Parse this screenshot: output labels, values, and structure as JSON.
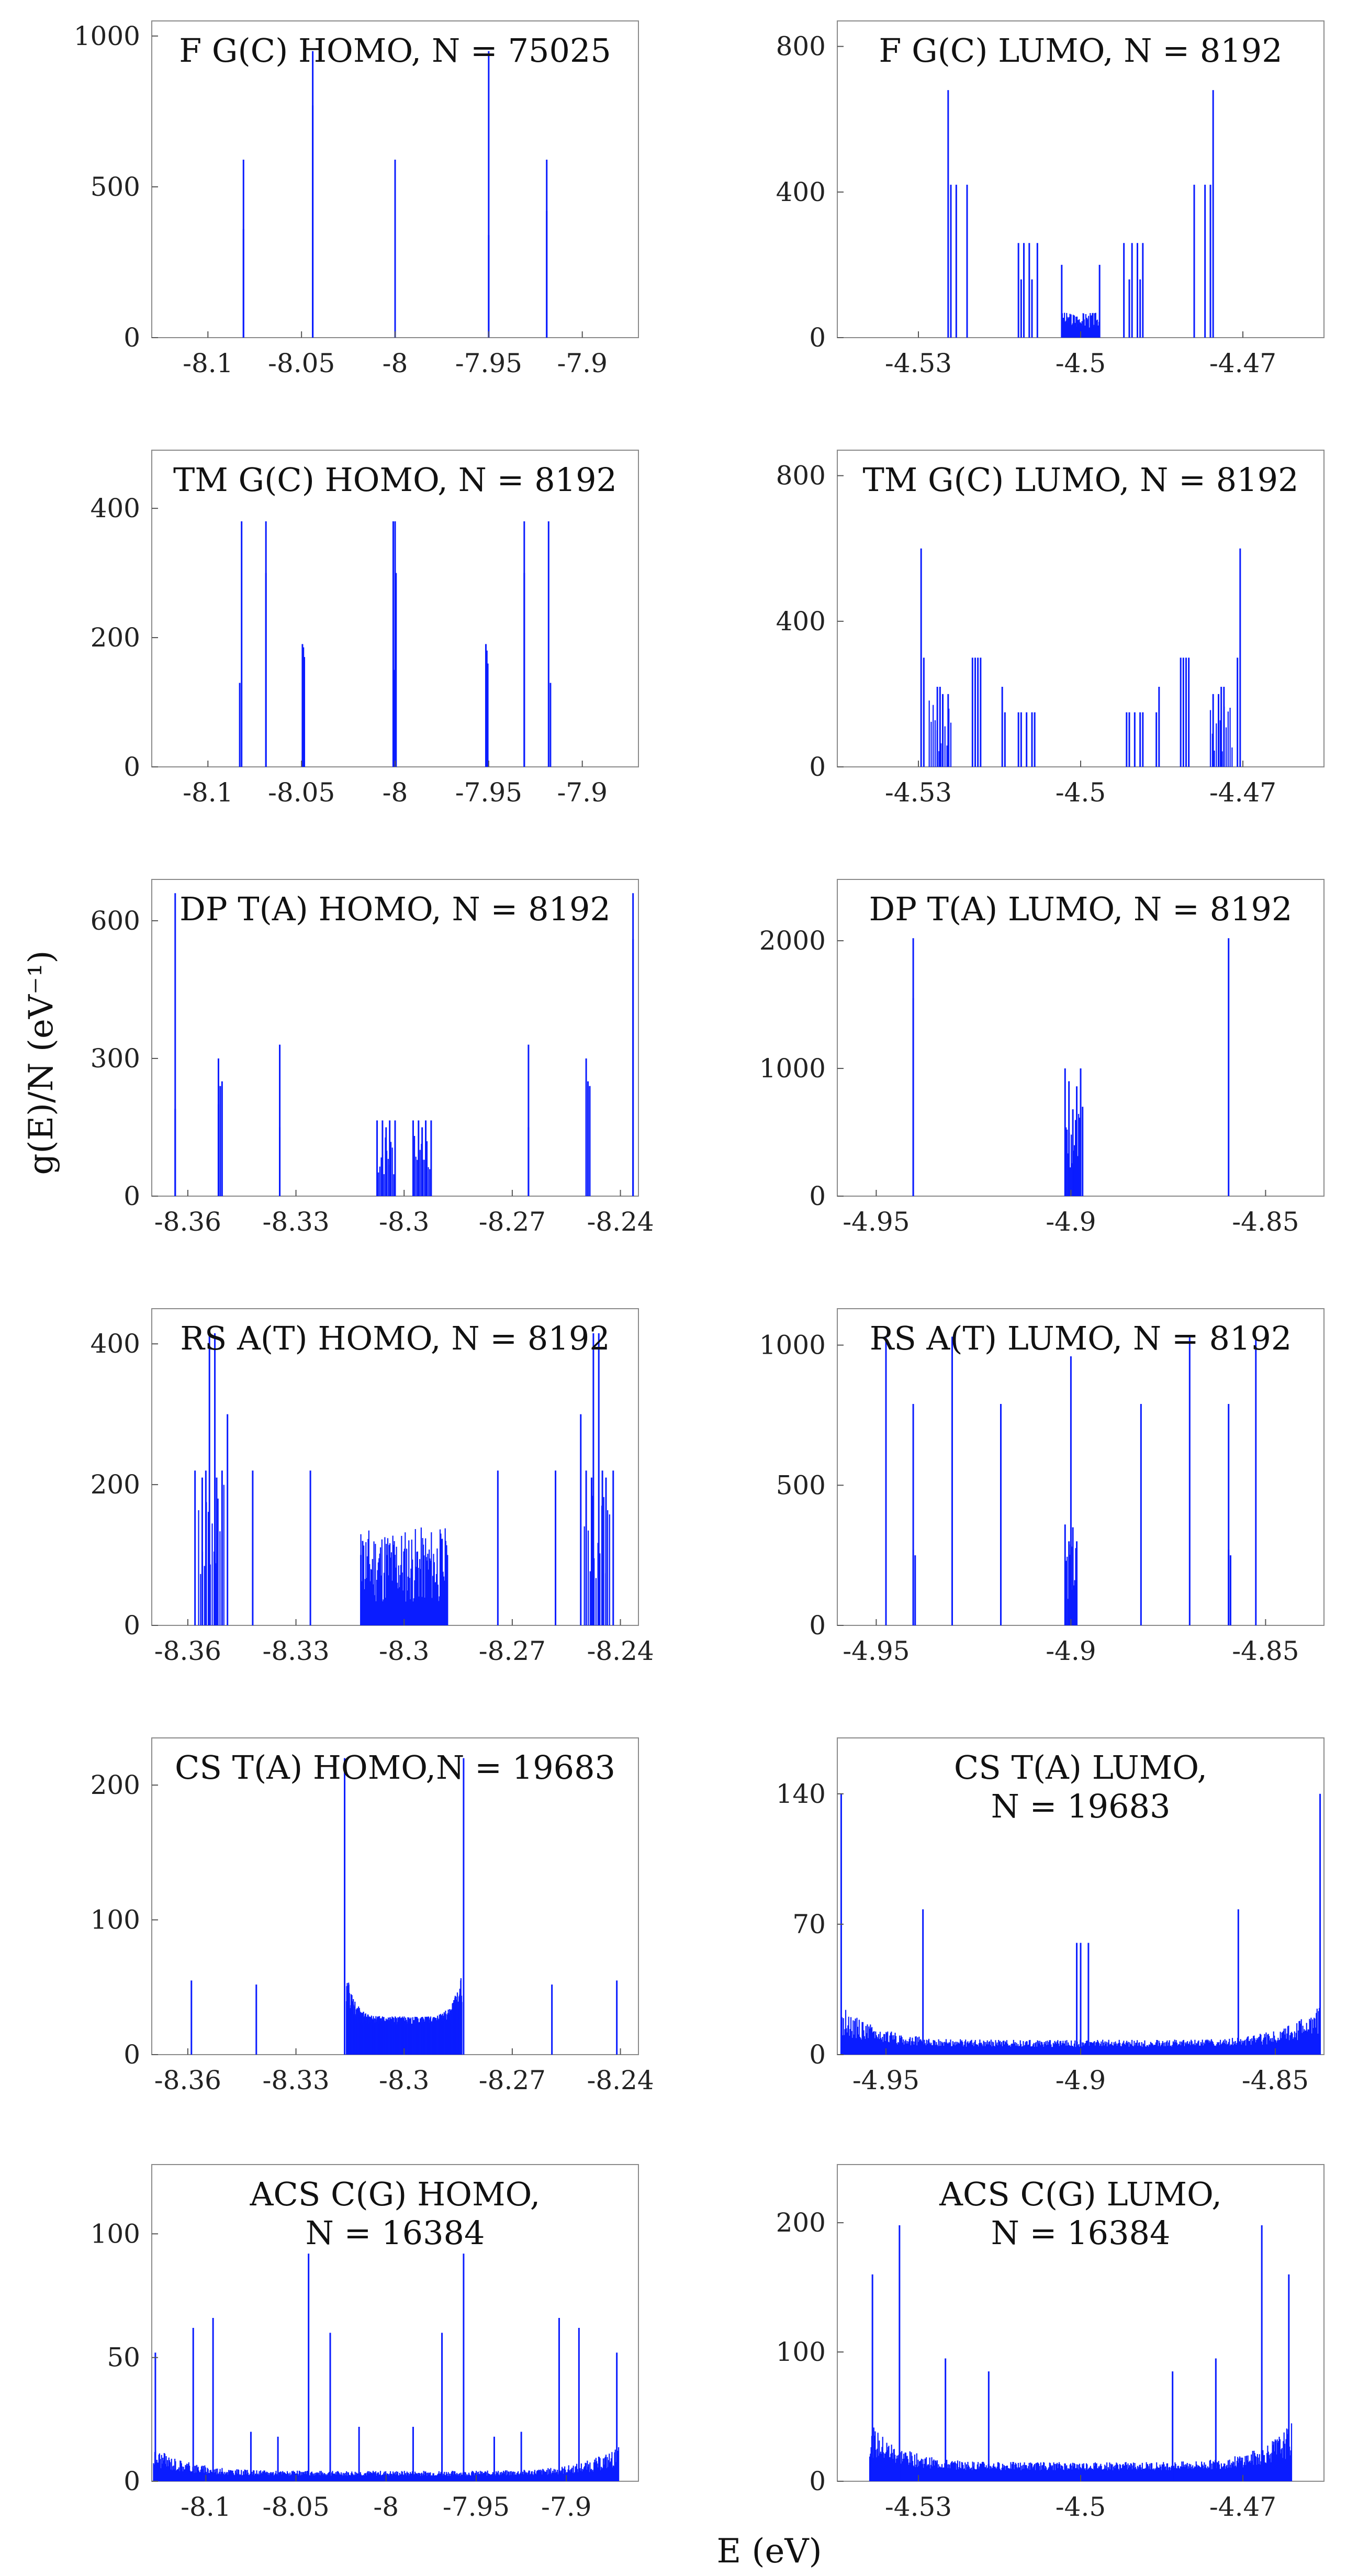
{
  "figure": {
    "ylabel": "g(E)/N (eV⁻¹)",
    "xlabel": "E (eV)"
  },
  "chart_data": [
    {
      "type": "bar",
      "title_lines": [
        "F G(C) HOMO, N = 75025"
      ],
      "xlim": [
        -8.13,
        -7.87
      ],
      "ylim": [
        0,
        1050
      ],
      "xticks": [
        -8.1,
        -8.05,
        -8.0,
        -7.95,
        -7.9
      ],
      "xtick_labels": [
        "-8.1",
        "-8.05",
        "-8",
        "-7.95",
        "-7.9"
      ],
      "yticks": [
        0,
        500,
        1000
      ],
      "ytick_labels": [
        "0",
        "500",
        "1000"
      ],
      "peaks": [
        [
          -8.081,
          590
        ],
        [
          -8.081,
          360
        ],
        [
          -8.044,
          950
        ],
        [
          -8.044,
          770
        ],
        [
          -8.0,
          590
        ],
        [
          -8.0,
          360
        ],
        [
          -7.95,
          950
        ],
        [
          -7.95,
          340
        ],
        [
          -7.919,
          590
        ],
        [
          -7.919,
          420
        ]
      ],
      "clusters": []
    },
    {
      "type": "bar",
      "title_lines": [
        "F G(C) LUMO, N = 8192"
      ],
      "xlim": [
        -4.545,
        -4.455
      ],
      "ylim": [
        0,
        870
      ],
      "xticks": [
        -4.53,
        -4.5,
        -4.47
      ],
      "xtick_labels": [
        "-4.53",
        "-4.5",
        "-4.47"
      ],
      "yticks": [
        0,
        400,
        800
      ],
      "ytick_labels": [
        "0",
        "400",
        "800"
      ],
      "peaks": [
        [
          -4.5245,
          680
        ],
        [
          -4.524,
          420
        ],
        [
          -4.523,
          420
        ],
        [
          -4.521,
          420
        ],
        [
          -4.5115,
          260
        ],
        [
          -4.5105,
          260
        ],
        [
          -4.5095,
          260
        ],
        [
          -4.508,
          260
        ],
        [
          -4.511,
          160
        ],
        [
          -4.509,
          160
        ],
        [
          -4.5035,
          200
        ],
        [
          -4.4965,
          200
        ],
        [
          -4.492,
          260
        ],
        [
          -4.4905,
          260
        ],
        [
          -4.4895,
          260
        ],
        [
          -4.4885,
          260
        ],
        [
          -4.491,
          160
        ],
        [
          -4.489,
          160
        ],
        [
          -4.479,
          420
        ],
        [
          -4.477,
          420
        ],
        [
          -4.476,
          420
        ],
        [
          -4.4755,
          680
        ]
      ],
      "clusters": [
        {
          "from": -4.5035,
          "to": -4.4965,
          "count": 70,
          "min": 25,
          "max": 70,
          "seed": 3
        }
      ]
    },
    {
      "type": "bar",
      "title_lines": [
        "TM G(C) HOMO, N = 8192"
      ],
      "xlim": [
        -8.13,
        -7.87
      ],
      "ylim": [
        0,
        490
      ],
      "xticks": [
        -8.1,
        -8.05,
        -8.0,
        -7.95,
        -7.9
      ],
      "xtick_labels": [
        "-8.1",
        "-8.05",
        "-8",
        "-7.95",
        "-7.9"
      ],
      "yticks": [
        0,
        200,
        400
      ],
      "ytick_labels": [
        "0",
        "200",
        "400"
      ],
      "peaks": [
        [
          -8.082,
          380
        ],
        [
          -8.083,
          130
        ],
        [
          -8.069,
          380
        ],
        [
          -8.069,
          300
        ],
        [
          -8.0495,
          190
        ],
        [
          -8.049,
          185
        ],
        [
          -8.0485,
          170
        ],
        [
          -8.001,
          380
        ],
        [
          -8.0,
          380
        ],
        [
          -7.9995,
          300
        ],
        [
          -8.0005,
          150
        ],
        [
          -7.9515,
          190
        ],
        [
          -7.951,
          180
        ],
        [
          -7.9505,
          160
        ],
        [
          -7.931,
          380
        ],
        [
          -7.931,
          300
        ],
        [
          -7.918,
          380
        ],
        [
          -7.917,
          130
        ]
      ],
      "clusters": []
    },
    {
      "type": "bar",
      "title_lines": [
        "TM G(C) LUMO, N = 8192"
      ],
      "xlim": [
        -4.545,
        -4.455
      ],
      "ylim": [
        0,
        870
      ],
      "xticks": [
        -4.53,
        -4.5,
        -4.47
      ],
      "xtick_labels": [
        "-4.53",
        "-4.5",
        "-4.47"
      ],
      "yticks": [
        0,
        400,
        800
      ],
      "ytick_labels": [
        "0",
        "400",
        "800"
      ],
      "peaks": [
        [
          -4.5295,
          600
        ],
        [
          -4.529,
          300
        ],
        [
          -4.5265,
          220
        ],
        [
          -4.526,
          220
        ],
        [
          -4.5255,
          200
        ],
        [
          -4.5245,
          200
        ],
        [
          -4.52,
          300
        ],
        [
          -4.5195,
          300
        ],
        [
          -4.519,
          300
        ],
        [
          -4.5185,
          300
        ],
        [
          -4.5145,
          220
        ],
        [
          -4.514,
          150
        ],
        [
          -4.5115,
          150
        ],
        [
          -4.511,
          150
        ],
        [
          -4.51,
          150
        ],
        [
          -4.509,
          150
        ],
        [
          -4.5085,
          150
        ],
        [
          -4.4915,
          150
        ],
        [
          -4.491,
          150
        ],
        [
          -4.49,
          150
        ],
        [
          -4.489,
          150
        ],
        [
          -4.4885,
          150
        ],
        [
          -4.486,
          150
        ],
        [
          -4.4855,
          220
        ],
        [
          -4.4815,
          300
        ],
        [
          -4.481,
          300
        ],
        [
          -4.4805,
          300
        ],
        [
          -4.48,
          300
        ],
        [
          -4.4755,
          200
        ],
        [
          -4.4745,
          200
        ],
        [
          -4.474,
          220
        ],
        [
          -4.4735,
          220
        ],
        [
          -4.471,
          300
        ],
        [
          -4.4705,
          600
        ]
      ],
      "clusters": [
        {
          "from": -4.528,
          "to": -4.524,
          "count": 12,
          "min": 40,
          "max": 200,
          "seed": 5
        },
        {
          "from": -4.476,
          "to": -4.472,
          "count": 12,
          "min": 40,
          "max": 200,
          "seed": 6
        }
      ]
    },
    {
      "type": "bar",
      "title_lines": [
        "DP T(A) HOMO, N = 8192"
      ],
      "xlim": [
        -8.37,
        -8.235
      ],
      "ylim": [
        0,
        690
      ],
      "xticks": [
        -8.36,
        -8.33,
        -8.3,
        -8.27,
        -8.24
      ],
      "xtick_labels": [
        "-8.36",
        "-8.33",
        "-8.3",
        "-8.27",
        "-8.24"
      ],
      "yticks": [
        0,
        300,
        600
      ],
      "ytick_labels": [
        "0",
        "300",
        "600"
      ],
      "peaks": [
        [
          -8.3635,
          660
        ],
        [
          -8.3635,
          190
        ],
        [
          -8.3515,
          300
        ],
        [
          -8.351,
          240
        ],
        [
          -8.3505,
          250
        ],
        [
          -8.3515,
          200
        ],
        [
          -8.3345,
          330
        ],
        [
          -8.3345,
          150
        ],
        [
          -8.3075,
          165
        ],
        [
          -8.306,
          165
        ],
        [
          -8.305,
          150
        ],
        [
          -8.304,
          165
        ],
        [
          -8.3025,
          165
        ],
        [
          -8.2975,
          165
        ],
        [
          -8.296,
          165
        ],
        [
          -8.295,
          150
        ],
        [
          -8.294,
          165
        ],
        [
          -8.2925,
          165
        ],
        [
          -8.2655,
          330
        ],
        [
          -8.2655,
          150
        ],
        [
          -8.2495,
          300
        ],
        [
          -8.249,
          250
        ],
        [
          -8.2485,
          240
        ],
        [
          -8.2365,
          660
        ],
        [
          -8.2365,
          560
        ]
      ],
      "clusters": [
        {
          "from": -8.3075,
          "to": -8.3025,
          "count": 14,
          "min": 40,
          "max": 140,
          "seed": 7
        },
        {
          "from": -8.2975,
          "to": -8.2925,
          "count": 14,
          "min": 40,
          "max": 140,
          "seed": 8
        }
      ]
    },
    {
      "type": "bar",
      "title_lines": [
        "DP T(A) LUMO, N = 8192"
      ],
      "xlim": [
        -4.96,
        -4.835
      ],
      "ylim": [
        0,
        2480
      ],
      "xticks": [
        -4.95,
        -4.9,
        -4.85
      ],
      "xtick_labels": [
        "-4.95",
        "-4.9",
        "-4.85"
      ],
      "yticks": [
        0,
        1000,
        2000
      ],
      "ytick_labels": [
        "0",
        "1000",
        "2000"
      ],
      "peaks": [
        [
          -4.9405,
          2020
        ],
        [
          -4.9405,
          1550
        ],
        [
          -4.9015,
          1000
        ],
        [
          -4.9005,
          900
        ],
        [
          -4.8995,
          680
        ],
        [
          -4.8985,
          860
        ],
        [
          -4.8975,
          1000
        ],
        [
          -4.897,
          700
        ],
        [
          -4.8595,
          2020
        ]
      ],
      "clusters": [
        {
          "from": -4.9015,
          "to": -4.8975,
          "count": 16,
          "min": 150,
          "max": 700,
          "seed": 9
        }
      ]
    },
    {
      "type": "bar",
      "title_lines": [
        "RS A(T) HOMO, N = 8192"
      ],
      "xlim": [
        -8.37,
        -8.235
      ],
      "ylim": [
        0,
        450
      ],
      "xticks": [
        -8.36,
        -8.33,
        -8.3,
        -8.27,
        -8.24
      ],
      "xtick_labels": [
        "-8.36",
        "-8.33",
        "-8.3",
        "-8.27",
        "-8.24"
      ],
      "yticks": [
        0,
        200,
        400
      ],
      "ytick_labels": [
        "0",
        "200",
        "400"
      ],
      "peaks": [
        [
          -8.358,
          220
        ],
        [
          -8.356,
          210
        ],
        [
          -8.355,
          220
        ],
        [
          -8.354,
          415
        ],
        [
          -8.3525,
          415
        ],
        [
          -8.352,
          210
        ],
        [
          -8.3505,
          220
        ],
        [
          -8.349,
          300
        ],
        [
          -8.342,
          220
        ],
        [
          -8.326,
          220
        ],
        [
          -8.312,
          100
        ],
        [
          -8.3115,
          120
        ],
        [
          -8.2885,
          120
        ],
        [
          -8.288,
          100
        ],
        [
          -8.274,
          220
        ],
        [
          -8.258,
          220
        ],
        [
          -8.251,
          300
        ],
        [
          -8.2495,
          220
        ],
        [
          -8.248,
          210
        ],
        [
          -8.2475,
          415
        ],
        [
          -8.246,
          415
        ],
        [
          -8.245,
          220
        ],
        [
          -8.244,
          210
        ],
        [
          -8.242,
          220
        ]
      ],
      "clusters": [
        {
          "from": -8.312,
          "to": -8.288,
          "count": 120,
          "min": 30,
          "max": 140,
          "seed": 11
        },
        {
          "from": -8.357,
          "to": -8.35,
          "count": 14,
          "min": 60,
          "max": 200,
          "seed": 12
        },
        {
          "from": -8.25,
          "to": -8.243,
          "count": 14,
          "min": 60,
          "max": 200,
          "seed": 13
        }
      ]
    },
    {
      "type": "bar",
      "title_lines": [
        "RS A(T) LUMO, N = 8192"
      ],
      "xlim": [
        -4.96,
        -4.835
      ],
      "ylim": [
        0,
        1130
      ],
      "xticks": [
        -4.95,
        -4.9,
        -4.85
      ],
      "xtick_labels": [
        "-4.95",
        "-4.9",
        "-4.85"
      ],
      "yticks": [
        0,
        500,
        1000
      ],
      "ytick_labels": [
        "0",
        "500",
        "1000"
      ],
      "peaks": [
        [
          -4.9475,
          1030
        ],
        [
          -4.9405,
          790
        ],
        [
          -4.9405,
          270
        ],
        [
          -4.94,
          250
        ],
        [
          -4.9305,
          1030
        ],
        [
          -4.918,
          790
        ],
        [
          -4.9015,
          360
        ],
        [
          -4.9005,
          300
        ],
        [
          -4.9,
          960
        ],
        [
          -4.8995,
          350
        ],
        [
          -4.8985,
          300
        ],
        [
          -4.882,
          790
        ],
        [
          -4.8695,
          1030
        ],
        [
          -4.8595,
          790
        ],
        [
          -4.8595,
          270
        ],
        [
          -4.859,
          250
        ],
        [
          -4.8525,
          1030
        ]
      ],
      "clusters": [
        {
          "from": -4.9015,
          "to": -4.8985,
          "count": 12,
          "min": 80,
          "max": 300,
          "seed": 14
        }
      ]
    },
    {
      "type": "bar",
      "title_lines": [
        "CS T(A) HOMO,N = 19683"
      ],
      "xlim": [
        -8.37,
        -8.235
      ],
      "ylim": [
        0,
        235
      ],
      "xticks": [
        -8.36,
        -8.33,
        -8.3,
        -8.27,
        -8.24
      ],
      "xtick_labels": [
        "-8.36",
        "-8.33",
        "-8.3",
        "-8.27",
        "-8.24"
      ],
      "yticks": [
        0,
        100,
        200
      ],
      "ytick_labels": [
        "0",
        "100",
        "200"
      ],
      "peaks": [
        [
          -8.359,
          55
        ],
        [
          -8.341,
          52
        ],
        [
          -8.3165,
          220
        ],
        [
          -8.2835,
          220
        ],
        [
          -8.259,
          52
        ],
        [
          -8.241,
          55
        ]
      ],
      "clusters": [
        {
          "from": -8.316,
          "to": -8.284,
          "count": 420,
          "min": 18,
          "max": 60,
          "seed": 21,
          "ushape": true
        }
      ]
    },
    {
      "type": "bar",
      "title_lines": [
        "CS T(A) LUMO,",
        "N = 19683"
      ],
      "xlim": [
        -4.9625,
        -4.8375
      ],
      "ylim": [
        0,
        170
      ],
      "xticks": [
        -4.95,
        -4.9,
        -4.85
      ],
      "xtick_labels": [
        "-4.95",
        "-4.9",
        "-4.85"
      ],
      "yticks": [
        0,
        70,
        140
      ],
      "ytick_labels": [
        "0",
        "70",
        "140"
      ],
      "peaks": [
        [
          -4.9615,
          140
        ],
        [
          -4.9405,
          78
        ],
        [
          -4.901,
          60
        ],
        [
          -4.9,
          60
        ],
        [
          -4.898,
          60
        ],
        [
          -4.8595,
          78
        ],
        [
          -4.8385,
          140
        ]
      ],
      "clusters": [
        {
          "from": -4.9615,
          "to": -4.8385,
          "count": 640,
          "min": 2,
          "max": 26,
          "seed": 22,
          "ushape": true
        }
      ]
    },
    {
      "type": "bar",
      "title_lines": [
        "ACS C(G) HOMO,",
        "N = 16384"
      ],
      "xlim": [
        -8.13,
        -7.86
      ],
      "ylim": [
        0,
        128
      ],
      "xticks": [
        -8.1,
        -8.05,
        -8.0,
        -7.95,
        -7.9
      ],
      "xtick_labels": [
        "-8.1",
        "-8.05",
        "-8",
        "-7.95",
        "-7.9"
      ],
      "yticks": [
        0,
        50,
        100
      ],
      "ytick_labels": [
        "0",
        "50",
        "100"
      ],
      "peaks": [
        [
          -8.128,
          52
        ],
        [
          -8.107,
          62
        ],
        [
          -8.096,
          66
        ],
        [
          -8.043,
          92
        ],
        [
          -8.031,
          60
        ],
        [
          -7.969,
          60
        ],
        [
          -7.957,
          92
        ],
        [
          -7.904,
          66
        ],
        [
          -7.893,
          62
        ],
        [
          -7.872,
          52
        ],
        [
          -8.075,
          20
        ],
        [
          -8.06,
          18
        ],
        [
          -8.015,
          22
        ],
        [
          -7.985,
          22
        ],
        [
          -7.94,
          18
        ],
        [
          -7.925,
          20
        ]
      ],
      "clusters": [
        {
          "from": -8.129,
          "to": -7.871,
          "count": 700,
          "min": 1,
          "max": 14,
          "seed": 31,
          "ushape": true
        }
      ]
    },
    {
      "type": "bar",
      "title_lines": [
        "ACS C(G) LUMO,",
        "N = 16384"
      ],
      "xlim": [
        -4.545,
        -4.455
      ],
      "ylim": [
        0,
        245
      ],
      "xticks": [
        -4.53,
        -4.5,
        -4.47
      ],
      "xtick_labels": [
        "-4.53",
        "-4.5",
        "-4.47"
      ],
      "yticks": [
        0,
        100,
        200
      ],
      "ytick_labels": [
        "0",
        "100",
        "200"
      ],
      "peaks": [
        [
          -4.5385,
          160
        ],
        [
          -4.5335,
          198
        ],
        [
          -4.525,
          95
        ],
        [
          -4.517,
          85
        ],
        [
          -4.483,
          85
        ],
        [
          -4.475,
          95
        ],
        [
          -4.4665,
          198
        ],
        [
          -4.4615,
          160
        ]
      ],
      "clusters": [
        {
          "from": -4.539,
          "to": -4.461,
          "count": 620,
          "min": 5,
          "max": 45,
          "seed": 32,
          "ushape": true
        }
      ]
    }
  ]
}
